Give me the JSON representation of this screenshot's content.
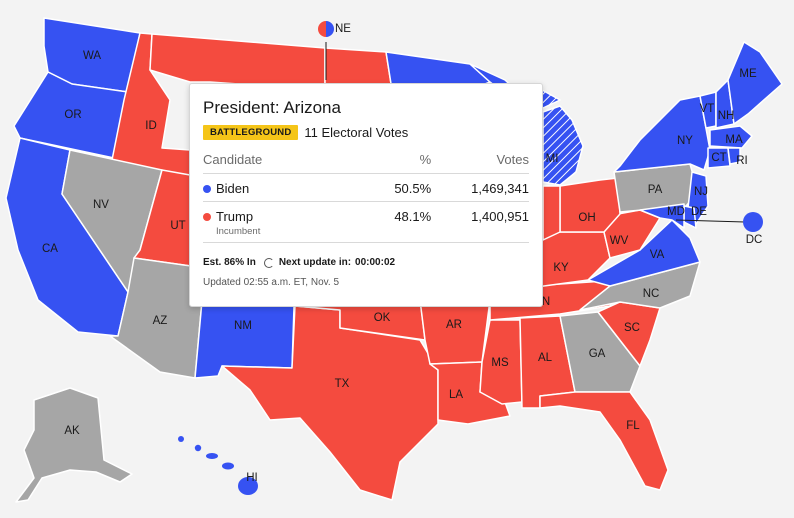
{
  "colors": {
    "biden": "#3652f2",
    "trump": "#f44b3f",
    "undecided": "#a6a6a6",
    "background": "#f3f3f3"
  },
  "map": {
    "states": {
      "WA": "WA",
      "OR": "OR",
      "CA": "CA",
      "ID": "ID",
      "NV": "NV",
      "UT": "UT",
      "AZ": "AZ",
      "NM": "NM",
      "TX": "TX",
      "OK": "OK",
      "AR": "AR",
      "LA": "LA",
      "MS": "MS",
      "AL": "AL",
      "GA": "GA",
      "FL": "FL",
      "SC": "SC",
      "NC": "NC",
      "VA": "VA",
      "WV": "WV",
      "KY": "KY",
      "TN": "N",
      "OH": "OH",
      "PA": "PA",
      "MI": "MI",
      "NY": "NY",
      "VT": "VT",
      "NH": "NH",
      "ME": "ME",
      "MA": "MA",
      "CT": "CT",
      "RI": "RI",
      "NJ": "NJ",
      "DE": "DE",
      "MD": "MD",
      "DC": "DC",
      "NE": "NE",
      "AK": "AK",
      "HI": "HI"
    }
  },
  "popup": {
    "title": "President: Arizona",
    "badge": "BATTLEGROUND",
    "electoral_votes": "11 Electoral Votes",
    "headers": {
      "candidate": "Candidate",
      "pct": "%",
      "votes": "Votes"
    },
    "rows": [
      {
        "name": "Biden",
        "pct": "50.5%",
        "votes": "1,469,341",
        "color": "#3652f2",
        "note": ""
      },
      {
        "name": "Trump",
        "pct": "48.1%",
        "votes": "1,400,951",
        "color": "#f44b3f",
        "note": "Incumbent"
      }
    ],
    "estimate": "Est. 86% In",
    "next_update_label": "Next update in:",
    "next_update_value": "00:00:02",
    "updated": "Updated 02:55 a.m. ET, Nov. 5"
  }
}
